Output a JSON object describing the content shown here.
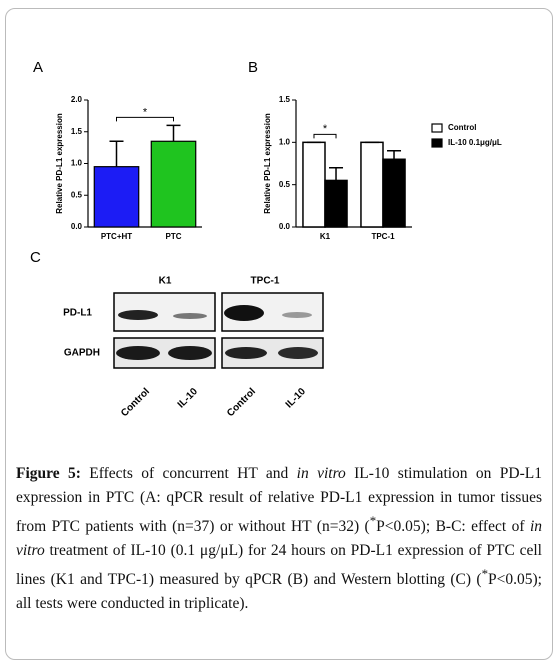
{
  "chart_data": [
    {
      "type": "bar",
      "y_label": "Relative PD-L1 expression",
      "categories": [
        "PTC+HT",
        "PTC"
      ],
      "values": [
        0.95,
        1.35
      ],
      "errors": [
        0.4,
        0.25
      ],
      "colors": [
        "#1c1cf5",
        "#1fc41f"
      ],
      "annotation": "*",
      "ylim": [
        0,
        2
      ],
      "yticks": [
        {
          "value": 0,
          "label": "0.0"
        },
        0.5,
        {
          "value": 1,
          "label": "1.0"
        },
        1.5,
        {
          "value": 2,
          "label": "2.0"
        }
      ]
    },
    {
      "type": "bar",
      "y_label": "Relative PD-L1 expression",
      "categories": [
        "K1",
        "TPC-1"
      ],
      "series": [
        {
          "name": "Control",
          "color": "#ffffff",
          "values": [
            1.0,
            1.0
          ],
          "errors": [
            0,
            0
          ]
        },
        {
          "name": "IL-10 0.1μg/μL",
          "color": "#000000",
          "values": [
            0.55,
            0.8
          ],
          "errors": [
            0.15,
            0.1
          ]
        }
      ],
      "annotation": "*",
      "legend": "right",
      "ylim": [
        0,
        1.5
      ],
      "yticks": [
        {
          "value": 0,
          "label": "0.0"
        },
        0.5,
        {
          "value": 1,
          "label": "1.0"
        },
        1.5
      ]
    }
  ],
  "panels": [
    "A",
    "B",
    "C"
  ],
  "blot": {
    "groups": [
      "K1",
      "TPC-1"
    ],
    "rows": [
      "PD-L1",
      "GAPDH"
    ],
    "lanes": [
      "Control",
      "IL-10",
      "Control",
      "IL-10"
    ]
  },
  "caption": {
    "label": "Figure 5:",
    "segments": [
      " Effects of concurrent HT and ",
      "in vitro",
      " IL-10 stimulation on PD-L1 expression in PTC (A: qPCR result of relative PD-L1 expression in tumor tissues from PTC patients with (n=37) or without HT (n=32) (",
      "*",
      "P<0.05); B-C: effect of ",
      "in vitro",
      " treatment of IL-10 (0.1 μg/μL) for 24 hours on PD-L1 expression of PTC cell lines (K1 and TPC-1) measured by qPCR (B) and Western blotting (C) (",
      "*",
      "P<0.05); all tests were conducted in triplicate)."
    ]
  }
}
